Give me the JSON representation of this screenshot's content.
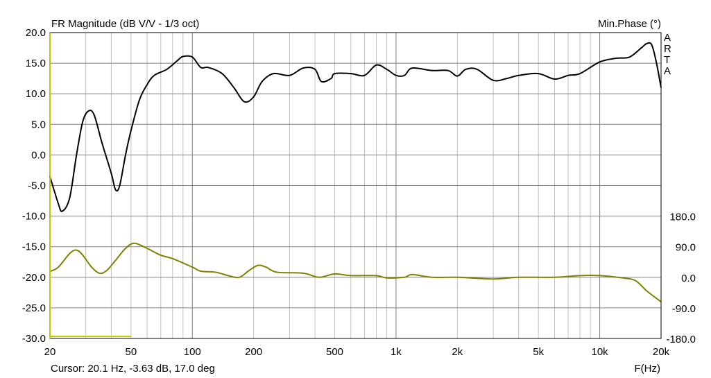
{
  "chart_data": {
    "type": "line",
    "title": "FR Magnitude (dB V/V - 1/3 oct)",
    "right_title": "Min.Phase (°)",
    "brand": "ARTA",
    "xlabel": "F(Hz)",
    "x_scale": "log",
    "xlim": [
      20,
      20000
    ],
    "ylim": [
      -30,
      20
    ],
    "y2lim": [
      -180,
      180
    ],
    "y_ticks": [
      "20.0",
      "15.0",
      "10.0",
      "5.0",
      "0.0",
      "-5.0",
      "-10.0",
      "-15.0",
      "-20.0",
      "-25.0",
      "-30.0"
    ],
    "y_tick_values": [
      20,
      15,
      10,
      5,
      0,
      -5,
      -10,
      -15,
      -20,
      -25,
      -30
    ],
    "y2_ticks": [
      "180.0",
      "90.0",
      "0.0",
      "-90.0",
      "-180.0"
    ],
    "y2_tick_values": [
      180,
      90,
      0,
      -90,
      -180
    ],
    "x_ticks": [
      "20",
      "50",
      "100",
      "200",
      "500",
      "1k",
      "2k",
      "5k",
      "10k",
      "20k"
    ],
    "x_tick_values": [
      20,
      50,
      100,
      200,
      500,
      1000,
      2000,
      5000,
      10000,
      20000
    ],
    "grid": true,
    "cursor_text": "Cursor: 20.1 Hz, -3.63 dB, 17.0 deg",
    "cursor_freq": 20.1,
    "series": [
      {
        "name": "Magnitude",
        "axis": "left",
        "color": "#000000",
        "x": [
          20,
          22,
          23,
          25,
          27,
          29,
          31,
          33,
          36,
          40,
          42,
          44,
          47,
          50,
          55,
          60,
          65,
          75,
          85,
          90,
          100,
          110,
          120,
          140,
          160,
          180,
          200,
          220,
          250,
          300,
          350,
          400,
          430,
          480,
          500,
          600,
          700,
          800,
          900,
          1000,
          1100,
          1200,
          1500,
          1800,
          2000,
          2200,
          2500,
          3000,
          3500,
          4000,
          5000,
          6000,
          7000,
          8000,
          10000,
          12000,
          14000,
          16000,
          17000,
          18000,
          19000,
          20000
        ],
        "y": [
          -3.5,
          -8,
          -9.2,
          -7,
          0,
          5.5,
          7.2,
          6.5,
          2,
          -3,
          -5.7,
          -5,
          0,
          4,
          9,
          11.5,
          13,
          14,
          15.5,
          16.1,
          16,
          14.3,
          14.3,
          13.3,
          11,
          8.7,
          9.5,
          12,
          13.3,
          13,
          14.2,
          14,
          12,
          12.5,
          13.3,
          13.3,
          13,
          14.7,
          14,
          13,
          13,
          14.2,
          13.8,
          13.8,
          12.9,
          14,
          14,
          12.2,
          12.5,
          13,
          13.3,
          12.4,
          13,
          13.3,
          15.2,
          15.8,
          16,
          17.5,
          18.2,
          18,
          15,
          11
        ]
      },
      {
        "name": "Min.Phase",
        "axis": "right",
        "color": "#808000",
        "x": [
          20,
          22,
          25,
          27,
          29,
          32,
          35,
          38,
          42,
          47,
          52,
          60,
          70,
          80,
          100,
          110,
          130,
          150,
          170,
          190,
          210,
          230,
          260,
          350,
          420,
          500,
          600,
          800,
          900,
          1100,
          1200,
          1500,
          2000,
          3000,
          4000,
          6000,
          8000,
          10000,
          13000,
          15000,
          17000,
          20000
        ],
        "y": [
          17,
          30,
          70,
          80,
          65,
          30,
          12,
          20,
          50,
          85,
          100,
          85,
          65,
          55,
          30,
          18,
          15,
          5,
          0,
          20,
          35,
          30,
          15,
          12,
          0,
          10,
          5,
          5,
          -2,
          0,
          8,
          0,
          0,
          -5,
          0,
          0,
          5,
          5,
          -2,
          -10,
          -40,
          -72
        ]
      }
    ]
  }
}
